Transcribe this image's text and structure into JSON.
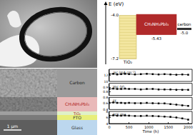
{
  "band_diagram": {
    "axis_label": "E (eV)",
    "ylim": [
      -7.6,
      -3.4
    ],
    "layers": [
      {
        "name": "TiO₂",
        "top": -4.0,
        "bottom": -7.2,
        "top_label": "-4.0",
        "bottom_label": "-7.2",
        "color": "#f3e6a0"
      },
      {
        "name": "CH₃NH₃PbI₃",
        "top": -3.93,
        "bottom": -5.43,
        "bottom_label": "-5.43",
        "color": "#b02a2a"
      }
    ],
    "carbon": {
      "name": "carbon",
      "level": -5.0,
      "label": "-5.0",
      "color": "#333333"
    }
  },
  "sem": {
    "layers": [
      {
        "label": "Carbon",
        "color": "#9a9a9a",
        "text_color": "#222222"
      },
      {
        "label": "CH₃NH₃PbI₃",
        "color": "#e9b9b9",
        "text_color": "#b02020"
      },
      {
        "label": "TiO₂",
        "color": "#dff0c8",
        "text_color": "#b02020"
      },
      {
        "label": "FTO",
        "color": "#e8ee7a",
        "text_color": "#333333"
      },
      {
        "label": "Glass",
        "color": "#bcd7ee",
        "text_color": "#333333"
      }
    ],
    "scale_bar": "1 μm"
  },
  "chart_data": {
    "type": "line",
    "marker": "square",
    "x_label": "Time (h)",
    "x": [
      0,
      100,
      200,
      300,
      400,
      500,
      650,
      800,
      950,
      1100,
      1250,
      1400,
      1550,
      1700,
      1850,
      2000
    ],
    "xlim": [
      0,
      2100
    ],
    "xticks": [
      0,
      500,
      1000,
      1500,
      2000
    ],
    "series": [
      {
        "name": "Jsc (mA cm⁻²)",
        "color": "#000000",
        "ylim": [
          10,
          14
        ],
        "yticks": [
          10,
          12,
          14
        ],
        "values": [
          12.4,
          12.5,
          12.3,
          12.4,
          12.5,
          12.4,
          12.3,
          12.4,
          12.5,
          12.4,
          12.3,
          12.4,
          12.3,
          12.2,
          12.3,
          12.2
        ]
      },
      {
        "name": "Voc (V)",
        "color": "#000000",
        "ylim": [
          0.7,
          1.0
        ],
        "yticks": [
          0.8,
          0.9
        ],
        "values": [
          0.86,
          0.87,
          0.86,
          0.86,
          0.87,
          0.86,
          0.86,
          0.85,
          0.86,
          0.86,
          0.85,
          0.85,
          0.85,
          0.84,
          0.84,
          0.84
        ]
      },
      {
        "name": "FF",
        "color": "#000000",
        "ylim": [
          0.4,
          0.8
        ],
        "yticks": [
          0.4,
          0.6,
          0.8
        ],
        "values": [
          0.62,
          0.63,
          0.62,
          0.62,
          0.61,
          0.62,
          0.61,
          0.61,
          0.62,
          0.61,
          0.6,
          0.6,
          0.58,
          0.56,
          0.54,
          0.52
        ]
      },
      {
        "name": "PCE (%)",
        "color": "#000000",
        "ylim": [
          4,
          8
        ],
        "yticks": [
          4,
          6,
          8
        ],
        "values": [
          6.6,
          6.7,
          6.6,
          6.6,
          6.7,
          6.6,
          6.5,
          6.5,
          6.6,
          6.5,
          6.4,
          6.3,
          6.2,
          6.0,
          5.7,
          5.3
        ]
      }
    ]
  }
}
